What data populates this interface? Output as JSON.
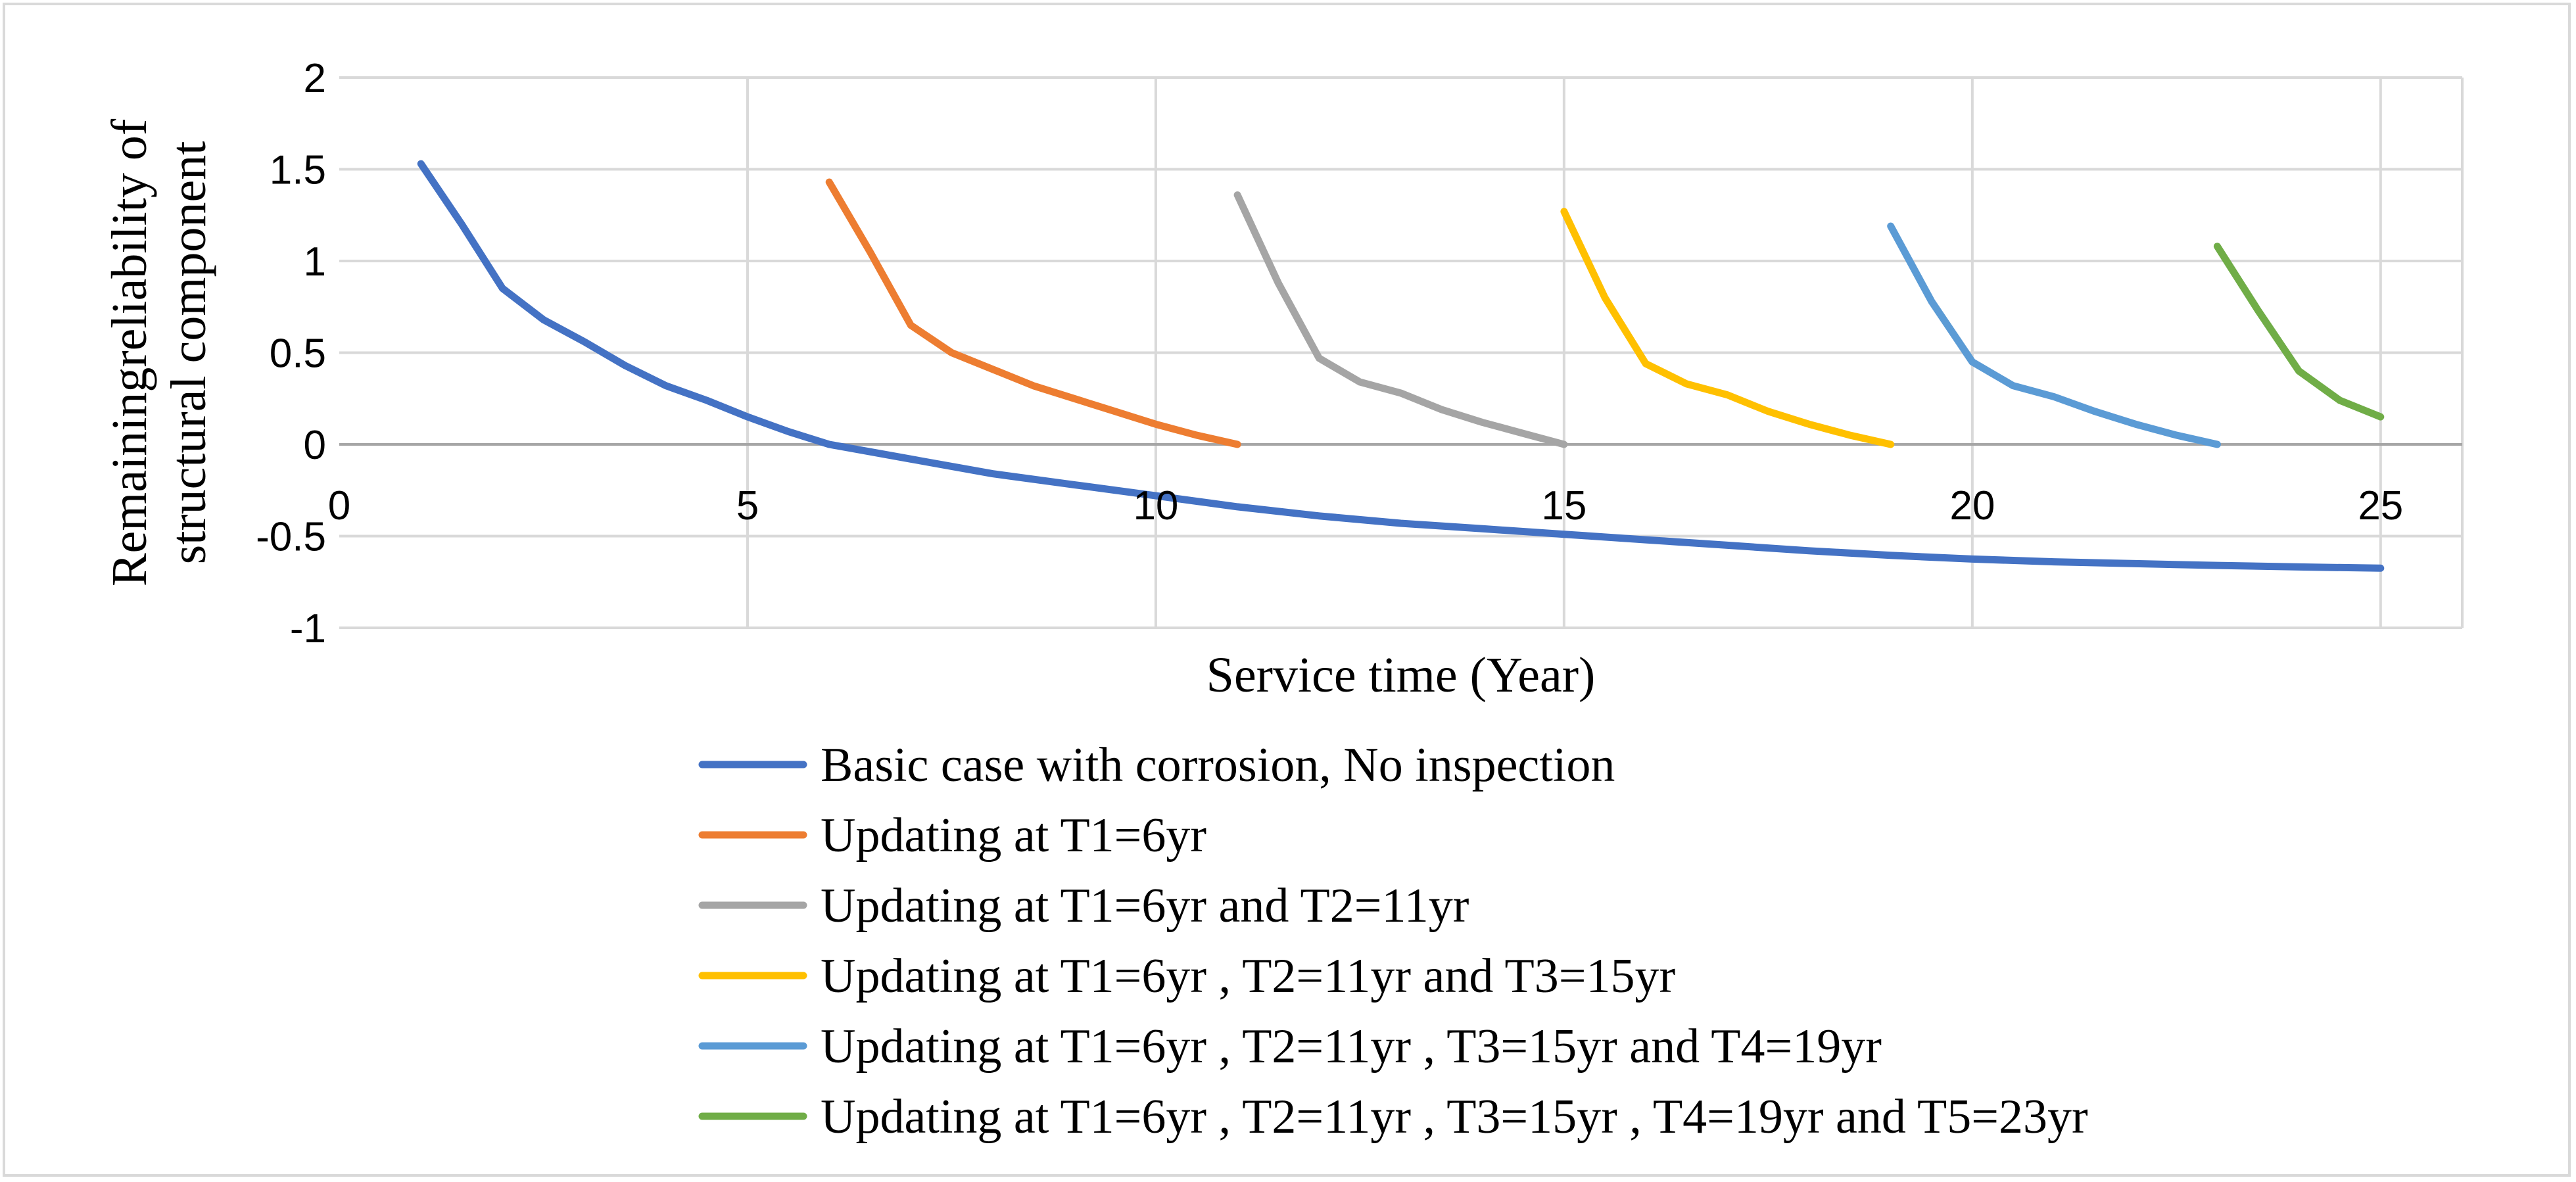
{
  "chart_data": {
    "type": "line",
    "title": "",
    "xlabel": "Service time (Year)",
    "ylabel_lines": [
      "Remainingreliability of",
      "structural component"
    ],
    "xlim": [
      0,
      26
    ],
    "ylim": [
      -1,
      2
    ],
    "x_ticks": [
      "0",
      "5",
      "10",
      "15",
      "20",
      "25"
    ],
    "y_ticks": [
      "2",
      "1.5",
      "1",
      "0.5",
      "0",
      "-0.5",
      "-1"
    ],
    "grid": true,
    "legend_position": "bottom",
    "series": [
      {
        "name": "Basic case with corrosion, No inspection",
        "color": "#4472C4",
        "x": [
          1,
          1.5,
          2,
          2.5,
          3,
          3.5,
          4,
          4.5,
          5,
          5.5,
          6,
          7,
          8,
          9,
          10,
          11,
          12,
          13,
          14,
          15,
          16,
          17,
          18,
          19,
          20,
          21,
          22,
          23,
          24,
          25
        ],
        "y": [
          1.53,
          1.2,
          0.85,
          0.68,
          0.56,
          0.43,
          0.32,
          0.24,
          0.15,
          0.07,
          0.0,
          -0.08,
          -0.16,
          -0.22,
          -0.28,
          -0.34,
          -0.39,
          -0.43,
          -0.46,
          -0.49,
          -0.52,
          -0.55,
          -0.58,
          -0.605,
          -0.625,
          -0.64,
          -0.65,
          -0.66,
          -0.668,
          -0.675
        ]
      },
      {
        "name": "Updating at T1=6yr",
        "color": "#ED7D31",
        "x": [
          6,
          6.5,
          7,
          7.5,
          8,
          8.5,
          9,
          9.5,
          10,
          10.5,
          11
        ],
        "y": [
          1.43,
          1.05,
          0.65,
          0.5,
          0.41,
          0.32,
          0.25,
          0.18,
          0.11,
          0.05,
          0.0
        ]
      },
      {
        "name": "Updating at T1=6yr and T2=11yr",
        "color": "#A5A5A5",
        "x": [
          11,
          11.5,
          12,
          12.5,
          13,
          13.5,
          14,
          14.5,
          15
        ],
        "y": [
          1.36,
          0.88,
          0.47,
          0.34,
          0.28,
          0.19,
          0.12,
          0.06,
          0.0
        ]
      },
      {
        "name": "Updating at T1=6yr , T2=11yr and T3=15yr",
        "color": "#FFC000",
        "x": [
          15,
          15.5,
          16,
          16.5,
          17,
          17.5,
          18,
          18.5,
          19
        ],
        "y": [
          1.27,
          0.8,
          0.44,
          0.33,
          0.27,
          0.18,
          0.11,
          0.05,
          0.0
        ]
      },
      {
        "name": "Updating at T1=6yr , T2=11yr , T3=15yr and T4=19yr",
        "color": "#5B9BD5",
        "x": [
          19,
          19.5,
          20,
          20.5,
          21,
          21.5,
          22,
          22.5,
          23
        ],
        "y": [
          1.19,
          0.78,
          0.45,
          0.32,
          0.26,
          0.18,
          0.11,
          0.05,
          0.0
        ]
      },
      {
        "name": "Updating at T1=6yr , T2=11yr , T3=15yr , T4=19yr and T5=23yr",
        "color": "#70AD47",
        "x": [
          23,
          23.5,
          24,
          24.5,
          25
        ],
        "y": [
          1.08,
          0.73,
          0.4,
          0.24,
          0.15
        ]
      }
    ]
  }
}
